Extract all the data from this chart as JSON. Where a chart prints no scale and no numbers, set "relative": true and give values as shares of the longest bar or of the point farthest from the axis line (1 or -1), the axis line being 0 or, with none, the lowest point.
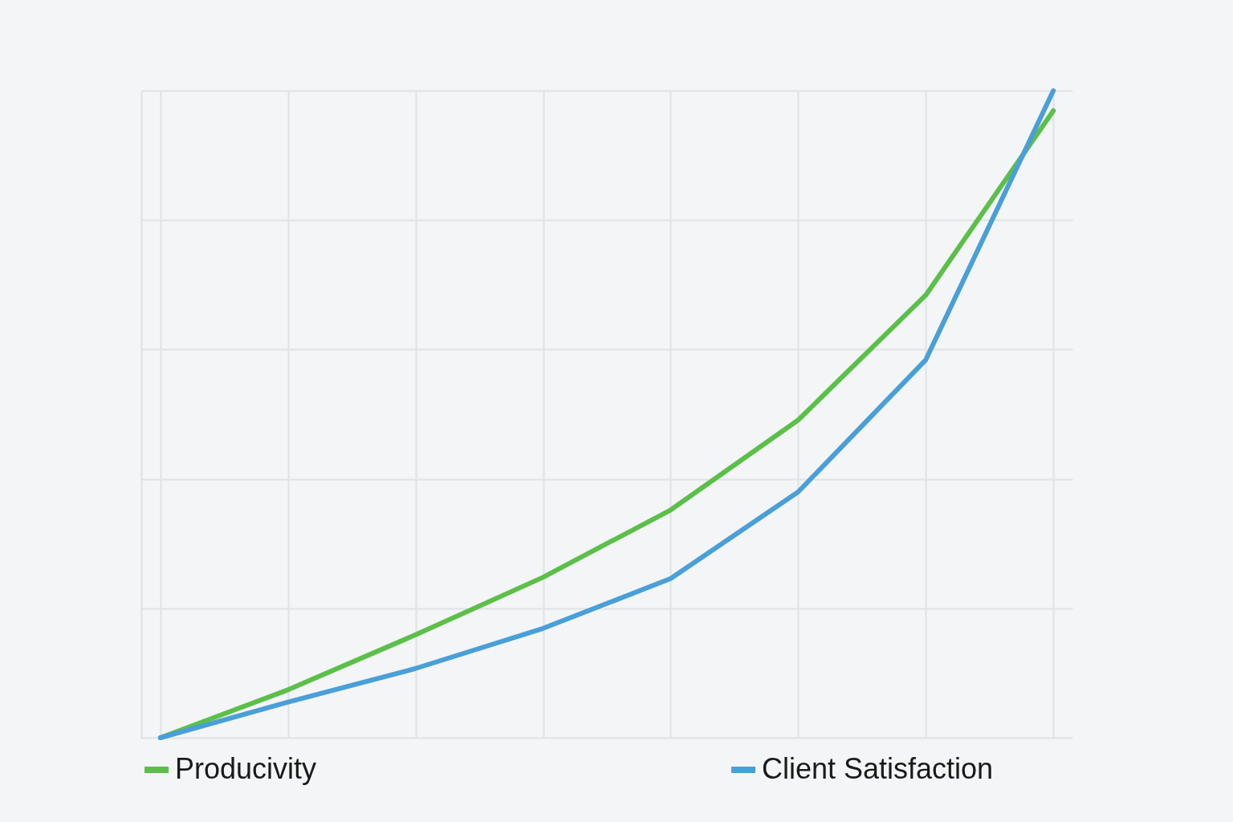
{
  "chart_data": {
    "type": "line",
    "relative": true,
    "categories": [
      null,
      null,
      null,
      null,
      null,
      null,
      null,
      null
    ],
    "series": [
      {
        "name": "Producivity",
        "color": "#5cbf4a",
        "values": [
          0,
          0.074,
          0.159,
          0.248,
          0.352,
          0.491,
          0.684,
          0.969
        ]
      },
      {
        "name": "Client Satisfaction",
        "color": "#4a9fd8",
        "values": [
          0,
          0.055,
          0.107,
          0.169,
          0.246,
          0.38,
          0.584,
          1
        ]
      }
    ],
    "grid": true,
    "legend": "bottom",
    "marker": "none",
    "line_style": "solid"
  }
}
